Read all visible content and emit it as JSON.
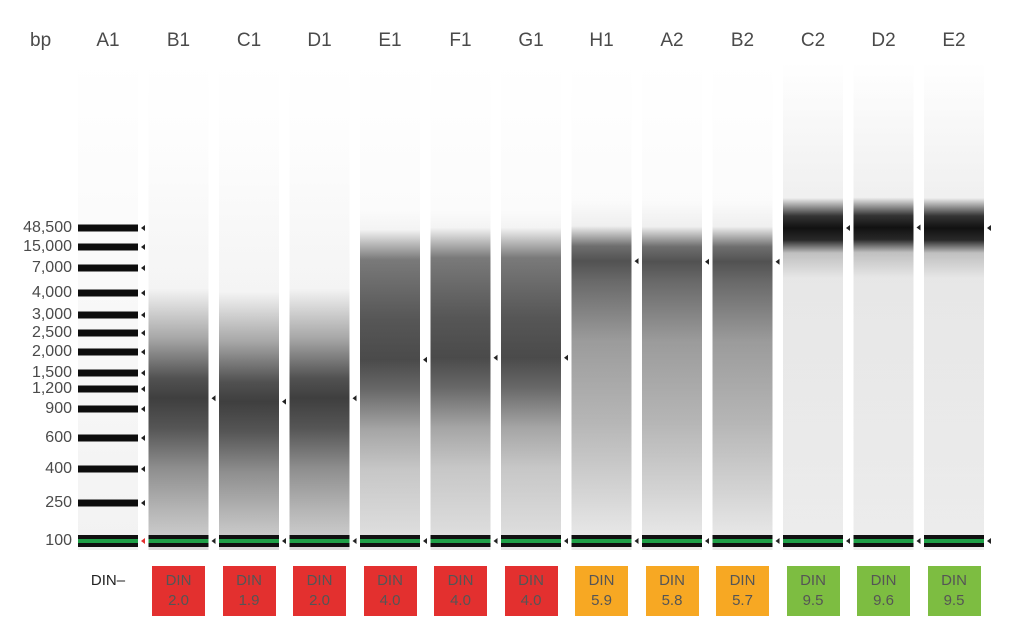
{
  "axis": {
    "unit_label": "bp"
  },
  "colors": {
    "red": "#e3302f",
    "orange": "#f7a823",
    "green": "#7dbd41",
    "marker": "#1fa047",
    "din_text": "#555555"
  },
  "ladder": {
    "lane": "A1",
    "bands": [
      {
        "label": "48,500",
        "bp": 48500
      },
      {
        "label": "15,000",
        "bp": 15000
      },
      {
        "label": "7,000",
        "bp": 7000
      },
      {
        "label": "4,000",
        "bp": 4000
      },
      {
        "label": "3,000",
        "bp": 3000
      },
      {
        "label": "2,500",
        "bp": 2500
      },
      {
        "label": "2,000",
        "bp": 2000
      },
      {
        "label": "1,500",
        "bp": 1500
      },
      {
        "label": "1,200",
        "bp": 1200
      },
      {
        "label": "900",
        "bp": 900
      },
      {
        "label": "600",
        "bp": 600
      },
      {
        "label": "400",
        "bp": 400
      },
      {
        "label": "250",
        "bp": 250
      },
      {
        "label": "100",
        "bp": 100
      }
    ]
  },
  "lanes": [
    {
      "id": "A1",
      "type": "ladder",
      "din_label": "DIN",
      "din_value": "–",
      "quality": "none"
    },
    {
      "id": "B1",
      "type": "sample",
      "din_label": "DIN",
      "din_value": "2.0",
      "quality": "red",
      "peak_bp": 1050
    },
    {
      "id": "C1",
      "type": "sample",
      "din_label": "DIN",
      "din_value": "1.9",
      "quality": "red",
      "peak_bp": 1000
    },
    {
      "id": "D1",
      "type": "sample",
      "din_label": "DIN",
      "din_value": "2.0",
      "quality": "red",
      "peak_bp": 1050
    },
    {
      "id": "E1",
      "type": "sample",
      "din_label": "DIN",
      "din_value": "4.0",
      "quality": "red",
      "peak_bp": 1800
    },
    {
      "id": "F1",
      "type": "sample",
      "din_label": "DIN",
      "din_value": "4.0",
      "quality": "red",
      "peak_bp": 1850
    },
    {
      "id": "G1",
      "type": "sample",
      "din_label": "DIN",
      "din_value": "4.0",
      "quality": "red",
      "peak_bp": 1850
    },
    {
      "id": "H1",
      "type": "sample",
      "din_label": "DIN",
      "din_value": "5.9",
      "quality": "orange",
      "peak_bp": 9000
    },
    {
      "id": "A2",
      "type": "sample",
      "din_label": "DIN",
      "din_value": "5.8",
      "quality": "orange",
      "peak_bp": 8800
    },
    {
      "id": "B2",
      "type": "sample",
      "din_label": "DIN",
      "din_value": "5.7",
      "quality": "orange",
      "peak_bp": 8800
    },
    {
      "id": "C2",
      "type": "sample",
      "din_label": "DIN",
      "din_value": "9.5",
      "quality": "green",
      "peak_bp": 48500
    },
    {
      "id": "D2",
      "type": "sample",
      "din_label": "DIN",
      "din_value": "9.6",
      "quality": "green",
      "peak_bp": 50000
    },
    {
      "id": "E2",
      "type": "sample",
      "din_label": "DIN",
      "din_value": "9.5",
      "quality": "green",
      "peak_bp": 48500
    }
  ]
}
